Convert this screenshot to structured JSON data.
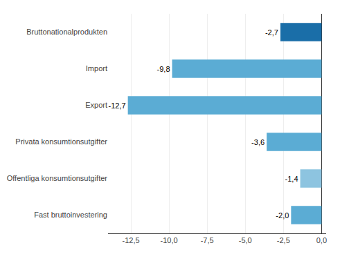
{
  "chart_data": {
    "type": "bar",
    "orientation": "horizontal",
    "categories": [
      "Fast bruttoinvestering",
      "Offentliga konsumtionsutgifter",
      "Privata konsumtionsutgifter",
      "Export",
      "Import",
      "Bruttonationalprodukten"
    ],
    "values": [
      -2.0,
      -1.4,
      -3.6,
      -12.7,
      -9.8,
      -2.7
    ],
    "value_labels": [
      "-2,0",
      "-1,4",
      "-3,6",
      "-12,7",
      "-9,8",
      "-2,7"
    ],
    "data_labels": true,
    "colors": [
      "#5bacd4",
      "#8dc4e0",
      "#5bacd4",
      "#5bacd4",
      "#5bacd4",
      "#1a6ea8"
    ],
    "xlim": [
      -14.0,
      0.3
    ],
    "xticks": [
      {
        "value": -12.5,
        "label": "-12,5"
      },
      {
        "value": -10.0,
        "label": "-10,0"
      },
      {
        "value": -7.5,
        "label": "-7,5"
      },
      {
        "value": -5.0,
        "label": "-5,0"
      },
      {
        "value": -2.5,
        "label": "-2,5"
      },
      {
        "value": 0.0,
        "label": "0,0"
      }
    ],
    "grid": true
  }
}
